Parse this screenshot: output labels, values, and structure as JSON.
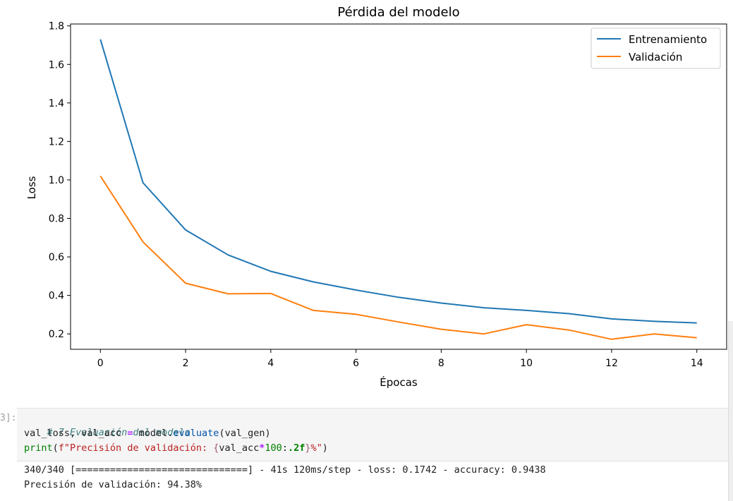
{
  "cell": {
    "prompt": "3]:",
    "code": {
      "line1_comment": "# 7 Evaluación del modelo",
      "line2": {
        "lhs_a": "val_loss",
        "sep": ", ",
        "lhs_b": "val_acc",
        "op": "=",
        "obj": "model.",
        "method": "evaluate",
        "args": "(val_gen)"
      },
      "line3": {
        "fn": "print",
        "open": "(",
        "str_start": "f\"Precisión de validación: ",
        "brace_open": "{",
        "expr": "val_acc",
        "mul": "*",
        "num": "100",
        "colon": ":",
        "fmt": ".2f",
        "brace_close": "}",
        "str_end": "%\"",
        "close": ")"
      }
    },
    "output": [
      "340/340 [==============================] - 41s 120ms/step - loss: 0.1742 - accuracy: 0.9438",
      "Precisión de validación: 94.38%"
    ]
  },
  "chart_data": {
    "type": "line",
    "title": "Pérdida del modelo",
    "xlabel": "Épocas",
    "ylabel": "Loss",
    "x": [
      0,
      1,
      2,
      3,
      4,
      5,
      6,
      7,
      8,
      9,
      10,
      11,
      12,
      13,
      14
    ],
    "xlim": [
      -0.7,
      14.7
    ],
    "ylim": [
      0.12,
      1.81
    ],
    "xticks": [
      0,
      2,
      4,
      6,
      8,
      10,
      12,
      14
    ],
    "yticks": [
      0.2,
      0.4,
      0.6,
      0.8,
      1.0,
      1.2,
      1.4,
      1.6,
      1.8
    ],
    "xtick_labels": [
      "0",
      "2",
      "4",
      "6",
      "8",
      "10",
      "12",
      "14"
    ],
    "ytick_labels": [
      "0.2",
      "0.4",
      "0.6",
      "0.8",
      "1.0",
      "1.2",
      "1.4",
      "1.6",
      "1.8"
    ],
    "grid": false,
    "legend": "upper right",
    "series": [
      {
        "name": "Entrenamiento",
        "color": "#1f77b4",
        "values": [
          1.73,
          0.985,
          0.74,
          0.61,
          0.525,
          0.47,
          0.428,
          0.39,
          0.36,
          0.336,
          0.322,
          0.305,
          0.278,
          0.265,
          0.257
        ]
      },
      {
        "name": "Validación",
        "color": "#ff7f0e",
        "values": [
          1.02,
          0.678,
          0.463,
          0.408,
          0.41,
          0.322,
          0.302,
          0.262,
          0.224,
          0.2,
          0.248,
          0.22,
          0.172,
          0.2,
          0.18
        ]
      }
    ]
  }
}
